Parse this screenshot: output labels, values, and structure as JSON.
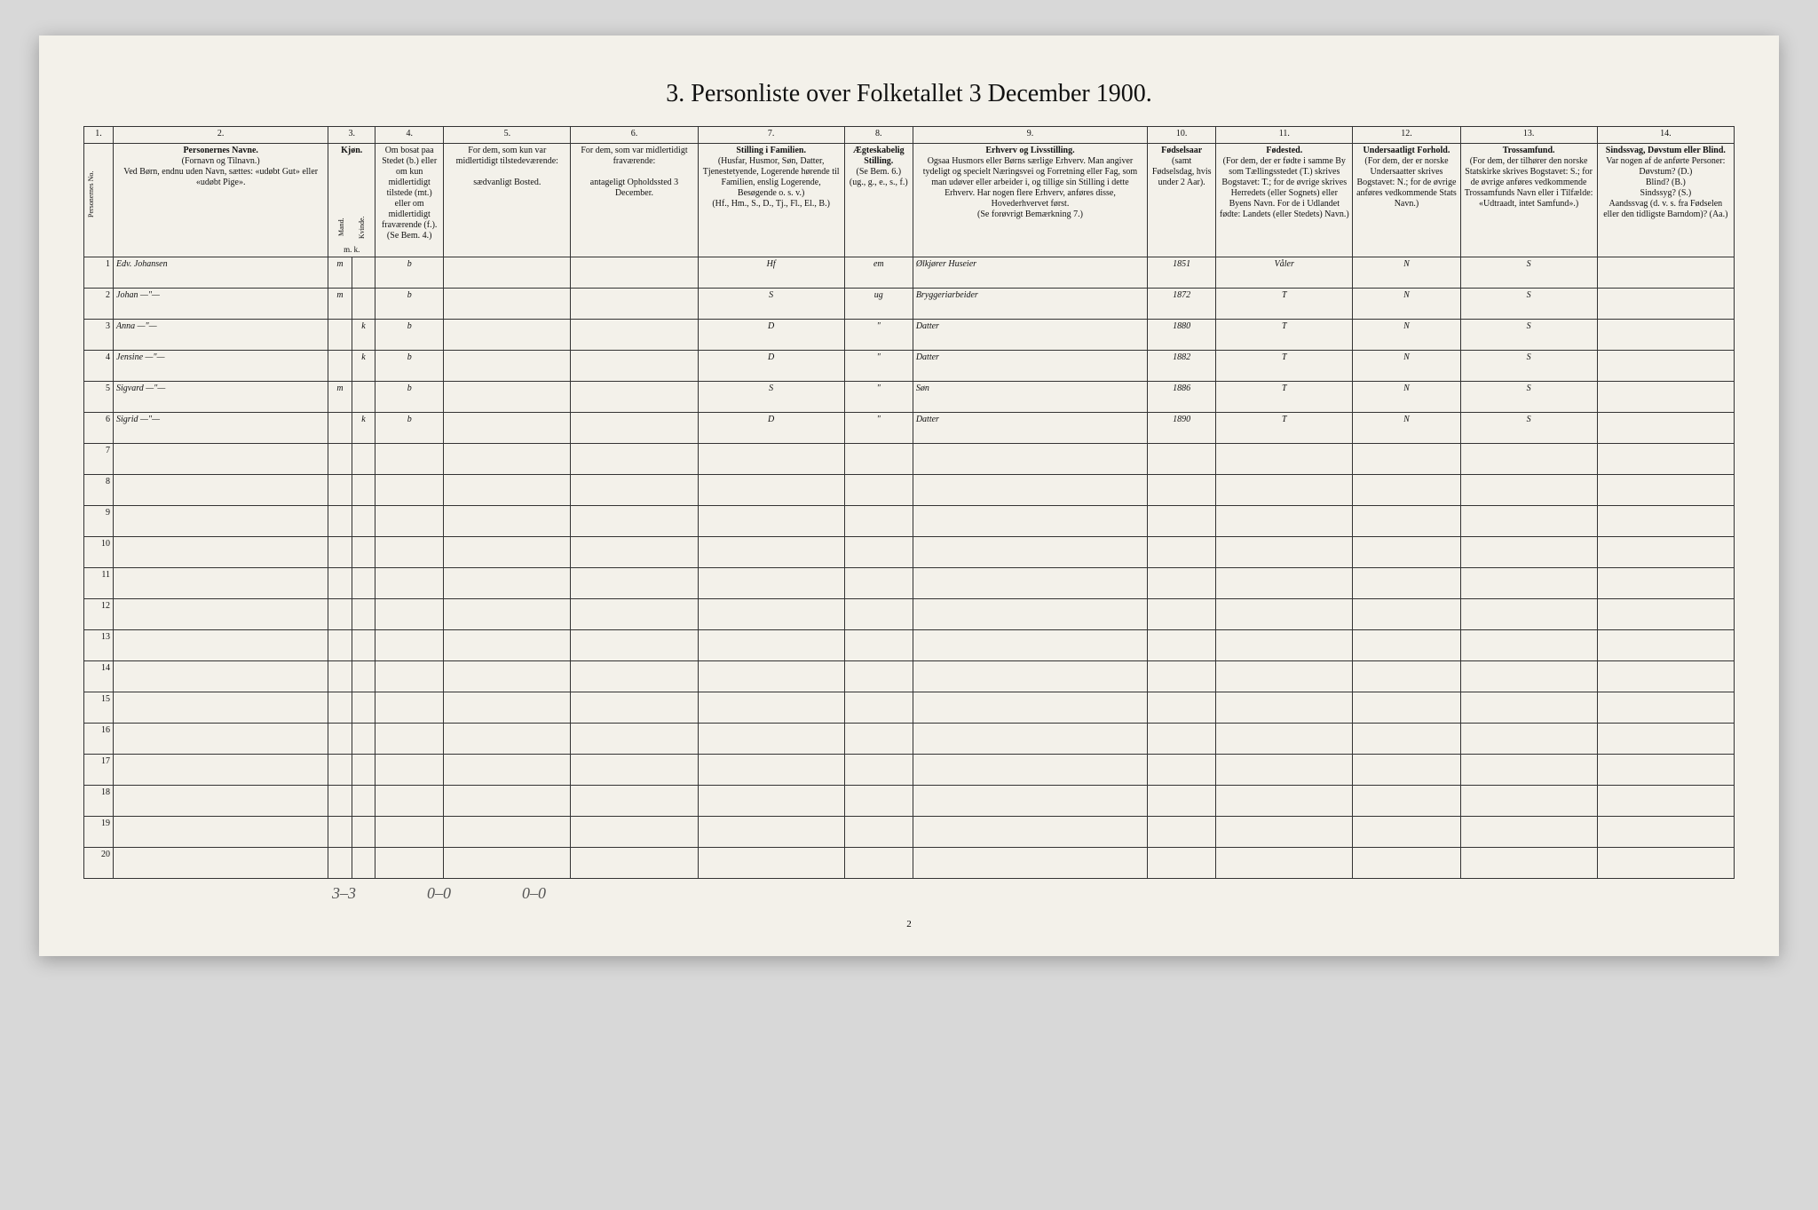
{
  "title": "3. Personliste over Folketallet 3 December 1900.",
  "pageNumber": "2",
  "columnNumbers": [
    "1.",
    "2.",
    "3.",
    "4.",
    "5.",
    "6.",
    "7.",
    "8.",
    "9.",
    "10.",
    "11.",
    "12.",
    "13.",
    "14."
  ],
  "columns": {
    "c1": {
      "label": "Personernes No."
    },
    "c2": {
      "bold": "Personernes Navne.",
      "sub": "(Fornavn og Tilnavn.)\nVed Børn, endnu uden Navn, sættes: «udøbt Gut» eller «udøbt Pige»."
    },
    "c3": {
      "bold": "Kjøn.",
      "left": "Mand.",
      "right": "Kvinde.",
      "foot": "m. k."
    },
    "c4": {
      "label": "Om bosat paa Stedet (b.) eller om kun midlertidigt tilstede (mt.) eller om midlertidigt fraværende (f.). (Se Bem. 4.)"
    },
    "c5": {
      "label": "For dem, som kun var midlertidigt tilstedeværende:",
      "sub": "sædvanligt Bosted."
    },
    "c6": {
      "label": "For dem, som var midlertidigt fraværende:",
      "sub": "antageligt Opholdssted 3 December."
    },
    "c7": {
      "bold": "Stilling i Familien.",
      "sub": "(Husfar, Husmor, Søn, Datter, Tjenestetyende, Logerende hørende til Familien, enslig Logerende, Besøgende o. s. v.)\n(Hf., Hm., S., D., Tj., Fl., El., B.)"
    },
    "c8": {
      "bold": "Ægteskabelig Stilling.",
      "sub": "(Se Bem. 6.)\n(ug., g., e., s., f.)"
    },
    "c9": {
      "bold": "Erhverv og Livsstilling.",
      "sub": "Ogsaa Husmors eller Børns særlige Erhverv. Man angiver tydeligt og specielt Næringsvei og Forretning eller Fag, som man udøver eller arbeider i, og tillige sin Stilling i dette Erhverv. Har nogen flere Erhverv, anføres disse, Hovederhvervet først.\n(Se forøvrigt Bemærkning 7.)"
    },
    "c10": {
      "bold": "Fødselsaar",
      "sub": "(samt Fødselsdag, hvis under 2 Aar)."
    },
    "c11": {
      "bold": "Fødested.",
      "sub": "(For dem, der er fødte i samme By som Tællingsstedet (T.) skrives Bogstavet: T.; for de øvrige skrives Herredets (eller Sognets) eller Byens Navn. For de i Udlandet fødte: Landets (eller Stedets) Navn.)"
    },
    "c12": {
      "bold": "Undersaatligt Forhold.",
      "sub": "(For dem, der er norske Undersaatter skrives Bogstavet: N.; for de øvrige anføres vedkommende Stats Navn.)"
    },
    "c13": {
      "bold": "Trossamfund.",
      "sub": "(For dem, der tilhører den norske Statskirke skrives Bogstavet: S.; for de øvrige anføres vedkommende Trossamfunds Navn eller i Tilfælde: «Udtraadt, intet Samfund».)"
    },
    "c14": {
      "bold": "Sindssvag, Døvstum eller Blind.",
      "sub": "Var nogen af de anførte Personer:\nDøvstum? (D.)\nBlind? (B.)\nSindssyg? (S.)\nAandssvag (d. v. s. fra Fødselen eller den tidligste Barndom)? (Aa.)"
    }
  },
  "colWidths": {
    "c1": 30,
    "c2": 220,
    "c3a": 24,
    "c3b": 24,
    "c4": 70,
    "c5": 130,
    "c6": 130,
    "c7": 150,
    "c8": 70,
    "c9": 240,
    "c10": 70,
    "c11": 140,
    "c12": 110,
    "c13": 140,
    "c14": 140
  },
  "rows": [
    {
      "n": "1",
      "name": "Edv. Johansen",
      "sex": "m",
      "res": "b",
      "c5": "",
      "c6": "",
      "fam": "Hf",
      "mar": "em",
      "occ": "Ølkjører Huseier",
      "year": "1851",
      "place": "Våler",
      "nat": "N",
      "rel": "S",
      "c14": ""
    },
    {
      "n": "2",
      "name": "Johan   —\"—",
      "sex": "m",
      "res": "b",
      "c5": "",
      "c6": "",
      "fam": "S",
      "mar": "ug",
      "occ": "Bryggeriarbeider",
      "year": "1872",
      "place": "T",
      "nat": "N",
      "rel": "S",
      "c14": ""
    },
    {
      "n": "3",
      "name": "Anna   —\"—",
      "sex": "k",
      "res": "b",
      "c5": "",
      "c6": "",
      "fam": "D",
      "mar": "\"",
      "occ": "Datter",
      "year": "1880",
      "place": "T",
      "nat": "N",
      "rel": "S",
      "c14": ""
    },
    {
      "n": "4",
      "name": "Jensine —\"—",
      "sex": "k",
      "res": "b",
      "c5": "",
      "c6": "",
      "fam": "D",
      "mar": "\"",
      "occ": "Datter",
      "year": "1882",
      "place": "T",
      "nat": "N",
      "rel": "S",
      "c14": ""
    },
    {
      "n": "5",
      "name": "Sigvard —\"—",
      "sex": "m",
      "res": "b",
      "c5": "",
      "c6": "",
      "fam": "S",
      "mar": "\"",
      "occ": "Søn",
      "year": "1886",
      "place": "T",
      "nat": "N",
      "rel": "S",
      "c14": ""
    },
    {
      "n": "6",
      "name": "Sigrid  —\"—",
      "sex": "k",
      "res": "b",
      "c5": "",
      "c6": "",
      "fam": "D",
      "mar": "\"",
      "occ": "Datter",
      "year": "1890",
      "place": "T",
      "nat": "N",
      "rel": "S",
      "c14": ""
    }
  ],
  "emptyRowStart": 7,
  "emptyRowEnd": 20,
  "footnotes": [
    "3–3",
    "0–0",
    "0–0"
  ],
  "colors": {
    "pageBg": "#f3f1ea",
    "outerBg": "#d8d8d8",
    "ink": "#111",
    "handwriting": "#2a1a00",
    "border": "#333"
  }
}
